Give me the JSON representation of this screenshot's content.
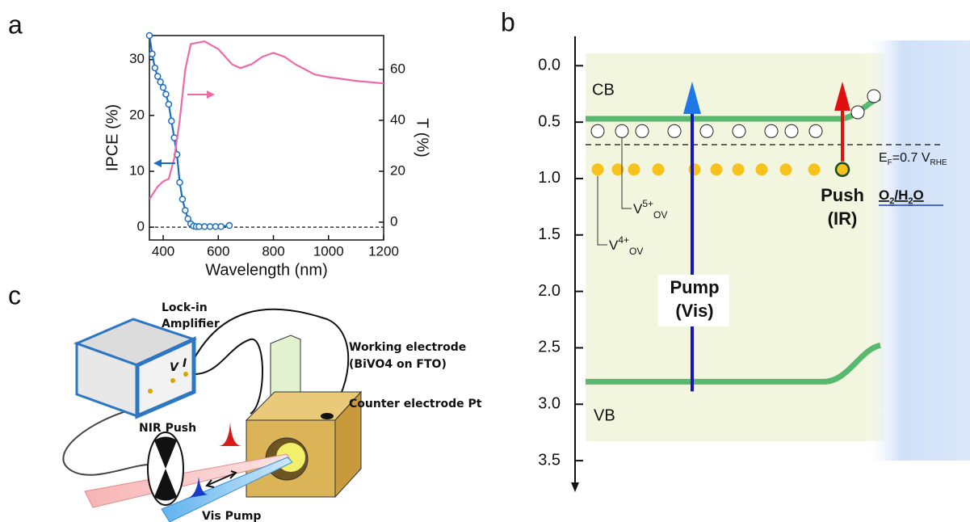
{
  "panel_labels": [
    "a",
    "b",
    "c"
  ],
  "chart_data": [
    {
      "type": "line",
      "x_label": "Wavelength (nm)",
      "y_label": "IPCE (%)",
      "y2_label": "T (%)",
      "xlim": [
        350,
        1200
      ],
      "xticks": [
        400,
        600,
        800,
        1000,
        1200
      ],
      "ylim": [
        -2.3,
        34.3
      ],
      "yticks": [
        0,
        10,
        20,
        30
      ],
      "y2lim": [
        -7,
        73.3
      ],
      "y2ticks": [
        0,
        20,
        40,
        60
      ],
      "hline": 0,
      "series": [
        {
          "color": "#1a6fc4",
          "axis": "y",
          "markers": true,
          "x": [
            350,
            360,
            370,
            380,
            390,
            400,
            410,
            420,
            430,
            440,
            450,
            460,
            470,
            480,
            490,
            500,
            510,
            520,
            530,
            550,
            570,
            590,
            610,
            640
          ],
          "values": [
            34.3,
            31,
            28.5,
            27,
            26,
            25,
            23.8,
            22,
            19,
            16,
            13,
            8,
            5,
            3,
            1.5,
            0.6,
            0.2,
            0.1,
            0.1,
            0.1,
            0.1,
            0.1,
            0.1,
            0.3
          ]
        },
        {
          "color": "#ee6aa7",
          "axis": "y2",
          "markers": false,
          "x": [
            350,
            380,
            400,
            420,
            440,
            460,
            480,
            500,
            550,
            600,
            650,
            680,
            720,
            760,
            800,
            840,
            880,
            950,
            1000,
            1100,
            1200
          ],
          "values": [
            9,
            14,
            16,
            17,
            25,
            40,
            60,
            70,
            71,
            68,
            62,
            60.5,
            62,
            65,
            66.5,
            65,
            62,
            58,
            57,
            55.5,
            54.5
          ]
        }
      ]
    },
    {
      "type": "band-diagram",
      "ylim": [
        -0.26,
        3.75
      ],
      "inverted": true,
      "yticks": [
        {
          "value": 0,
          "label": "0.0"
        },
        {
          "value": 0.5,
          "label": "0.5"
        },
        {
          "value": 1,
          "label": "1.0"
        },
        {
          "value": 1.5,
          "label": "1.5"
        },
        {
          "value": 2,
          "label": "2.0"
        },
        {
          "value": 2.5,
          "label": "2.5"
        },
        {
          "value": 3,
          "label": "3.0"
        },
        {
          "value": 3.5,
          "label": "3.5"
        }
      ],
      "cb_label": "CB",
      "vb_label": "VB",
      "cb_level": 0.47,
      "vb_level": 2.8,
      "fermi_level": 0.7,
      "fermi_label": [
        "E",
        "F",
        "=0.7 V",
        "RHE"
      ],
      "ov5_level": 0.58,
      "ov5_label": [
        "V",
        "5+",
        "OV"
      ],
      "ov4_level": 0.92,
      "ov4_label": [
        "V",
        "4+",
        "OV"
      ],
      "push_label": [
        "Push",
        "(IR)"
      ],
      "pump_label": [
        "Pump",
        "(Vis)"
      ],
      "redox_label": [
        "O",
        "2",
        "/H",
        "2",
        "O"
      ]
    }
  ],
  "schematic": {
    "lock_in": [
      "Lock-in",
      "Amplifier"
    ],
    "terminals": [
      "V",
      "I"
    ],
    "working_electrode": [
      "Working electrode",
      "(BiVO4 on FTO)"
    ],
    "counter_electrode": "Counter electrode Pt",
    "nir_push": "NIR Push",
    "vis_pump": "Vis Pump"
  }
}
